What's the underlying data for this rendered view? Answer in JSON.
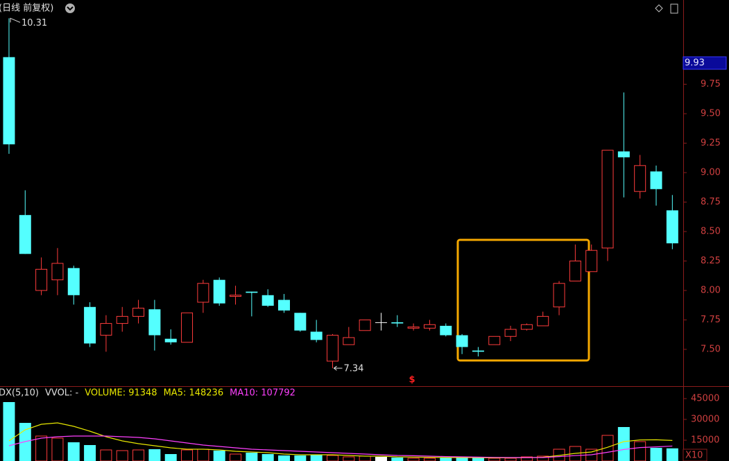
{
  "header": {
    "title": "(日线 前复权)"
  },
  "chart_data": [
    {
      "type": "candlestick",
      "open": [
        9.98,
        8.64,
        8.0,
        8.09,
        8.19,
        7.86,
        7.62,
        7.72,
        7.78,
        7.84,
        7.59,
        7.56,
        7.9,
        8.09,
        7.95,
        7.99,
        7.96,
        7.92,
        7.81,
        7.65,
        7.4,
        7.54,
        7.66,
        7.73,
        7.73,
        7.68,
        7.68,
        7.7,
        7.62,
        7.49,
        7.54,
        7.61,
        7.67,
        7.7,
        7.86,
        8.08,
        8.16,
        8.36,
        9.18,
        8.84,
        9.01,
        8.68
      ],
      "high": [
        10.31,
        8.85,
        8.28,
        8.36,
        8.21,
        7.9,
        7.79,
        7.86,
        7.92,
        7.92,
        7.67,
        7.81,
        8.09,
        8.11,
        8.04,
        7.99,
        8.01,
        7.97,
        7.81,
        7.75,
        7.63,
        7.69,
        7.75,
        7.81,
        7.79,
        7.72,
        7.75,
        7.72,
        7.63,
        7.52,
        7.61,
        7.7,
        7.72,
        7.82,
        8.08,
        8.39,
        8.39,
        9.19,
        9.68,
        9.15,
        9.06,
        8.81
      ],
      "low": [
        9.16,
        8.31,
        7.96,
        7.96,
        7.88,
        7.52,
        7.48,
        7.65,
        7.72,
        7.49,
        7.54,
        7.56,
        7.81,
        7.87,
        7.88,
        7.78,
        7.86,
        7.81,
        7.65,
        7.56,
        7.34,
        7.54,
        7.66,
        7.66,
        7.69,
        7.66,
        7.66,
        7.61,
        7.46,
        7.44,
        7.54,
        7.57,
        7.66,
        7.7,
        7.79,
        8.08,
        8.16,
        8.25,
        8.79,
        8.78,
        8.72,
        8.35
      ],
      "close": [
        9.24,
        8.31,
        8.18,
        8.23,
        7.96,
        7.55,
        7.72,
        7.78,
        7.85,
        7.62,
        7.56,
        7.81,
        8.06,
        7.89,
        7.96,
        7.98,
        7.87,
        7.83,
        7.66,
        7.58,
        7.62,
        7.6,
        7.75,
        7.73,
        7.72,
        7.69,
        7.71,
        7.62,
        7.52,
        7.48,
        7.61,
        7.67,
        7.71,
        7.78,
        8.06,
        8.25,
        8.34,
        9.19,
        9.13,
        9.06,
        8.86,
        8.4
      ],
      "ylim": [
        7.188,
        10.465
      ],
      "yticks": [
        {
          "value": 7.5,
          "label": "7.50"
        },
        7.75,
        {
          "value": 8.0,
          "label": "8.00"
        },
        8.25,
        {
          "value": 8.5,
          "label": "8.50"
        },
        8.75,
        {
          "value": 9.0,
          "label": "9.00"
        },
        9.25,
        {
          "value": 9.5,
          "label": "9.50"
        },
        9.75
      ],
      "colors": {
        "up": "#ff3c3c",
        "down": "#54ffff",
        "flat": "#ffffff"
      },
      "max_label": 10.31,
      "min_label": 7.34,
      "current_price": 9.93,
      "marker_symbol": "$"
    },
    {
      "type": "bar",
      "legend": [
        "DX(5,10)",
        "VVOL: -",
        "VOLUME: 91348",
        "MA5: 148236",
        "MA10: 107792"
      ],
      "unit_label": "X10",
      "values": [
        42500,
        27500,
        18000,
        16500,
        13500,
        11500,
        8000,
        7500,
        8000,
        8500,
        5000,
        8000,
        8500,
        7500,
        5000,
        6000,
        5000,
        4000,
        4000,
        4500,
        4000,
        3000,
        3500,
        3000,
        2500,
        2000,
        2000,
        2500,
        2500,
        2500,
        2000,
        2000,
        3000,
        3500,
        8500,
        10500,
        8500,
        18500,
        24500,
        14000,
        9500,
        9135
      ],
      "series": [
        {
          "name": "MA5",
          "color": "#e8e800",
          "values": [
            14500,
            22500,
            26500,
            27500,
            25000,
            21500,
            17500,
            14500,
            12500,
            11000,
            9500,
            8500,
            8500,
            8000,
            7000,
            6500,
            6000,
            5000,
            4500,
            4500,
            4500,
            4000,
            3500,
            3500,
            3000,
            2800,
            2700,
            2500,
            2500,
            2400,
            2300,
            2300,
            2400,
            2700,
            4000,
            5500,
            6500,
            9900,
            14000,
            15200,
            15300,
            14824
          ]
        },
        {
          "name": "MA10",
          "color": "#ff40ff",
          "values": [
            11000,
            14000,
            16500,
            17500,
            18000,
            18000,
            18000,
            17500,
            17000,
            16000,
            14500,
            13000,
            11500,
            10500,
            9500,
            8500,
            8000,
            7500,
            7000,
            6500,
            6000,
            5500,
            5000,
            4500,
            4000,
            3800,
            3500,
            3200,
            3000,
            2800,
            2600,
            2500,
            2500,
            2500,
            3200,
            3900,
            4500,
            6300,
            8300,
            9700,
            10200,
            10779
          ]
        }
      ],
      "ylim": [
        0,
        54000
      ],
      "yticks": [
        15000,
        30000,
        45000
      ]
    }
  ]
}
